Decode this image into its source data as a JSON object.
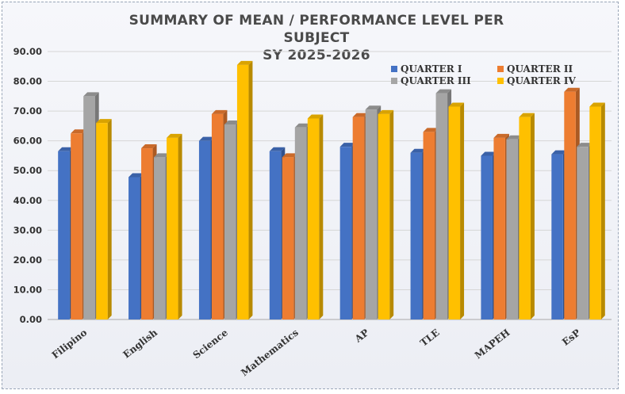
{
  "chart_data": {
    "type": "bar",
    "title_lines": [
      "SUMMARY OF MEAN  / PERFORMANCE LEVEL PER",
      "SUBJECT",
      "SY 2025-2026"
    ],
    "categories": [
      "Filipino",
      "English",
      "Science",
      "Mathematics",
      "AP",
      "TLE",
      "MAPEH",
      "EsP"
    ],
    "series": [
      {
        "name": "QUARTER I",
        "color": "#4472c4",
        "values": [
          56.5,
          47.8,
          60.0,
          56.5,
          58.0,
          56.0,
          55.0,
          55.5
        ]
      },
      {
        "name": "QUARTER II",
        "color": "#ed7d31",
        "values": [
          62.5,
          57.5,
          69.0,
          54.5,
          68.0,
          63.0,
          61.0,
          76.5
        ]
      },
      {
        "name": "QUARTER III",
        "color": "#a5a5a5",
        "values": [
          75.0,
          54.5,
          65.5,
          64.5,
          70.5,
          76.0,
          60.5,
          58.0
        ]
      },
      {
        "name": "QUARTER IV",
        "color": "#ffc000",
        "values": [
          66.0,
          61.0,
          85.5,
          67.5,
          69.0,
          71.5,
          68.0,
          71.5
        ]
      }
    ],
    "y_ticks": [
      "0.00",
      "10.00",
      "20.00",
      "30.00",
      "40.00",
      "50.00",
      "60.00",
      "70.00",
      "80.00",
      "90.00"
    ],
    "ylim": [
      0,
      90
    ],
    "grid": true,
    "legend_position": "top-right"
  }
}
